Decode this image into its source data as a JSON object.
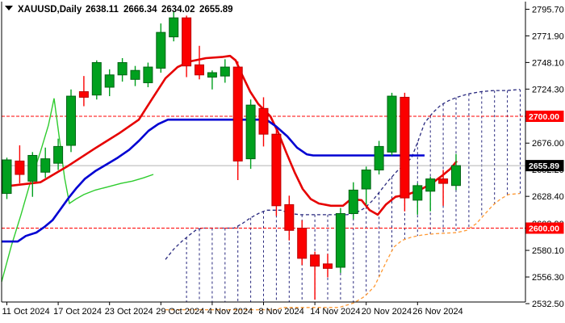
{
  "title": {
    "symbol_period": "XAUUSD,Daily",
    "open": "2638.11",
    "high": "2666.34",
    "low": "2634.02",
    "close": "2655.89"
  },
  "chart_data": {
    "type": "candlestick",
    "symbol": "XAUUSD",
    "timeframe": "Daily",
    "indicator": "Ichimoku Kinko Hyo",
    "grid": false,
    "colors": {
      "background": "#ffffff",
      "frame": "#000000",
      "bull_body": "#00a01e",
      "bull_border": "#006414",
      "bear_body": "#fb0000",
      "bear_border": "#bb0000",
      "tenkan_sen": "#e60000",
      "kijun_sen": "#0000d2",
      "chikou_span": "#2ecc2e",
      "senkou_span_a": "#28287e",
      "senkou_span_b": "#ff9933",
      "cloud_hatch": "#28287e",
      "level_line": "#ff0000",
      "current_line": "#b4b4b4",
      "badge_text": "#ffffff",
      "axis_text": "#000000"
    },
    "y_axis": {
      "ticks": [
        {
          "label": "2795.70",
          "value": 2795.7
        },
        {
          "label": "2771.90",
          "value": 2771.9
        },
        {
          "label": "2748.10",
          "value": 2748.1
        },
        {
          "label": "2724.30",
          "value": 2724.3
        },
        {
          "label": "2676.00",
          "value": 2676.0
        },
        {
          "label": "2652.20",
          "value": 2652.2
        },
        {
          "label": "2628.40",
          "value": 2628.4
        },
        {
          "label": "2603.90",
          "value": 2603.9
        },
        {
          "label": "2580.10",
          "value": 2580.1
        },
        {
          "label": "2556.30",
          "value": 2556.3
        },
        {
          "label": "2532.50",
          "value": 2532.5
        }
      ]
    },
    "levels": [
      {
        "label": "2700.00",
        "value": 2700.0,
        "style": "dashed",
        "color": "#ff0000"
      },
      {
        "label": "2600.00",
        "value": 2600.0,
        "style": "dashed",
        "color": "#ff0000"
      }
    ],
    "current_price": {
      "label": "2655.89",
      "value": 2655.89,
      "badge_bg": "#000000"
    },
    "x_axis": {
      "labels": [
        {
          "label": "11 Oct 2024",
          "bar": 0
        },
        {
          "label": "17 Oct 2024",
          "bar": 4
        },
        {
          "label": "23 Oct 2024",
          "bar": 8
        },
        {
          "label": "29 Oct 2024",
          "bar": 12
        },
        {
          "label": "4 Nov 2024",
          "bar": 16
        },
        {
          "label": "8 Nov 2024",
          "bar": 20
        },
        {
          "label": "14 Nov 2024",
          "bar": 24
        },
        {
          "label": "20 Nov 2024",
          "bar": 28
        },
        {
          "label": "26 Nov 2024",
          "bar": 32
        }
      ]
    },
    "candles": [
      {
        "date": "11 Oct 2024",
        "o": 2631.0,
        "h": 2663.0,
        "l": 2626.0,
        "c": 2661.0
      },
      {
        "date": "14 Oct 2024",
        "o": 2660.0,
        "h": 2674.0,
        "l": 2640.0,
        "c": 2648.0
      },
      {
        "date": "15 Oct 2024",
        "o": 2642.0,
        "h": 2668.0,
        "l": 2628.0,
        "c": 2665.0
      },
      {
        "date": "16 Oct 2024",
        "o": 2650.0,
        "h": 2672.0,
        "l": 2645.0,
        "c": 2662.0
      },
      {
        "date": "17 Oct 2024",
        "o": 2658.0,
        "h": 2680.0,
        "l": 2652.0,
        "c": 2673.0
      },
      {
        "date": "18 Oct 2024",
        "o": 2674.0,
        "h": 2724.0,
        "l": 2668.0,
        "c": 2718.0
      },
      {
        "date": "21 Oct 2024",
        "o": 2722.0,
        "h": 2736.0,
        "l": 2709.0,
        "c": 2717.0
      },
      {
        "date": "22 Oct 2024",
        "o": 2719.0,
        "h": 2750.0,
        "l": 2715.0,
        "c": 2748.0
      },
      {
        "date": "23 Oct 2024",
        "o": 2726.0,
        "h": 2742.0,
        "l": 2718.0,
        "c": 2737.0
      },
      {
        "date": "24 Oct 2024",
        "o": 2737.0,
        "h": 2752.0,
        "l": 2731.0,
        "c": 2748.0
      },
      {
        "date": "25 Oct 2024",
        "o": 2733.0,
        "h": 2745.0,
        "l": 2727.0,
        "c": 2741.0
      },
      {
        "date": "28 Oct 2024",
        "o": 2730.0,
        "h": 2748.0,
        "l": 2726.0,
        "c": 2744.0
      },
      {
        "date": "29 Oct 2024",
        "o": 2743.0,
        "h": 2783.0,
        "l": 2739.0,
        "c": 2775.0
      },
      {
        "date": "30 Oct 2024",
        "o": 2771.0,
        "h": 2794.0,
        "l": 2767.0,
        "c": 2788.0
      },
      {
        "date": "31 Oct 2024",
        "o": 2788.0,
        "h": 2790.0,
        "l": 2735.0,
        "c": 2745.0
      },
      {
        "date": "1 Nov 2024",
        "o": 2746.0,
        "h": 2763.0,
        "l": 2733.0,
        "c": 2737.0
      },
      {
        "date": "4 Nov 2024",
        "o": 2735.0,
        "h": 2741.0,
        "l": 2724.0,
        "c": 2739.0
      },
      {
        "date": "5 Nov 2024",
        "o": 2736.0,
        "h": 2751.0,
        "l": 2730.0,
        "c": 2744.0
      },
      {
        "date": "6 Nov 2024",
        "o": 2744.0,
        "h": 2749.0,
        "l": 2643.0,
        "c": 2660.0
      },
      {
        "date": "7 Nov 2024",
        "o": 2662.0,
        "h": 2715.0,
        "l": 2653.0,
        "c": 2710.0
      },
      {
        "date": "8 Nov 2024",
        "o": 2707.0,
        "h": 2717.0,
        "l": 2673.0,
        "c": 2684.0
      },
      {
        "date": "11 Nov 2024",
        "o": 2684.0,
        "h": 2688.0,
        "l": 2611.0,
        "c": 2620.0
      },
      {
        "date": "12 Nov 2024",
        "o": 2621.0,
        "h": 2629.0,
        "l": 2589.0,
        "c": 2598.0
      },
      {
        "date": "13 Nov 2024",
        "o": 2600.0,
        "h": 2607.0,
        "l": 2567.0,
        "c": 2573.0
      },
      {
        "date": "14 Nov 2024",
        "o": 2576.0,
        "h": 2579.0,
        "l": 2536.0,
        "c": 2566.0
      },
      {
        "date": "15 Nov 2024",
        "o": 2568.0,
        "h": 2577.0,
        "l": 2556.0,
        "c": 2564.0
      },
      {
        "date": "18 Nov 2024",
        "o": 2565.0,
        "h": 2618.0,
        "l": 2560.0,
        "c": 2613.0
      },
      {
        "date": "19 Nov 2024",
        "o": 2613.0,
        "h": 2641.0,
        "l": 2608.0,
        "c": 2634.0
      },
      {
        "date": "20 Nov 2024",
        "o": 2635.0,
        "h": 2655.0,
        "l": 2621.0,
        "c": 2652.0
      },
      {
        "date": "21 Nov 2024",
        "o": 2652.0,
        "h": 2678.0,
        "l": 2648.0,
        "c": 2673.0
      },
      {
        "date": "22 Nov 2024",
        "o": 2668.0,
        "h": 2721.0,
        "l": 2665.0,
        "c": 2718.0
      },
      {
        "date": "25 Nov 2024",
        "o": 2717.0,
        "h": 2721.0,
        "l": 2615.0,
        "c": 2627.0
      },
      {
        "date": "26 Nov 2024",
        "o": 2625.0,
        "h": 2640.0,
        "l": 2612.0,
        "c": 2638.0
      },
      {
        "date": "27 Nov 2024",
        "o": 2633.0,
        "h": 2646.0,
        "l": 2615.0,
        "c": 2644.0
      },
      {
        "date": "28 Nov 2024",
        "o": 2644.0,
        "h": 2652.0,
        "l": 2620.0,
        "c": 2640.0
      },
      {
        "date": "29 Nov 2024",
        "o": 2638.11,
        "h": 2666.34,
        "l": 2634.02,
        "c": 2655.89
      }
    ],
    "ichimoku": {
      "tenkan_sen": [
        [
          2,
          2637
        ],
        [
          50,
          2641
        ],
        [
          83,
          2655
        ],
        [
          117,
          2671
        ],
        [
          148,
          2685
        ],
        [
          172,
          2697
        ],
        [
          188,
          2715
        ],
        [
          205,
          2734
        ],
        [
          220,
          2744
        ],
        [
          235,
          2749
        ],
        [
          255,
          2752
        ],
        [
          275,
          2753
        ],
        [
          285,
          2754
        ],
        [
          292,
          2750
        ],
        [
          300,
          2737
        ],
        [
          310,
          2722
        ],
        [
          320,
          2711
        ],
        [
          335,
          2700
        ],
        [
          345,
          2685
        ],
        [
          355,
          2667
        ],
        [
          365,
          2650
        ],
        [
          375,
          2635
        ],
        [
          385,
          2626
        ],
        [
          395,
          2622
        ],
        [
          410,
          2620
        ],
        [
          425,
          2620
        ],
        [
          435,
          2626
        ],
        [
          448,
          2625
        ],
        [
          458,
          2616
        ],
        [
          468,
          2612
        ],
        [
          478,
          2621
        ],
        [
          490,
          2628
        ],
        [
          505,
          2630
        ],
        [
          520,
          2634
        ],
        [
          535,
          2640
        ],
        [
          548,
          2647
        ],
        [
          558,
          2653
        ],
        [
          566,
          2660
        ]
      ],
      "kijun_sen": [
        [
          2,
          2588
        ],
        [
          22,
          2588
        ],
        [
          32,
          2593
        ],
        [
          45,
          2596
        ],
        [
          55,
          2601
        ],
        [
          65,
          2607
        ],
        [
          75,
          2617
        ],
        [
          85,
          2627
        ],
        [
          95,
          2636
        ],
        [
          105,
          2644
        ],
        [
          118,
          2651
        ],
        [
          132,
          2657
        ],
        [
          146,
          2663
        ],
        [
          160,
          2670
        ],
        [
          172,
          2678
        ],
        [
          184,
          2687
        ],
        [
          196,
          2693
        ],
        [
          208,
          2697
        ],
        [
          330,
          2697
        ],
        [
          342,
          2691
        ],
        [
          356,
          2682
        ],
        [
          368,
          2672
        ],
        [
          380,
          2666
        ],
        [
          388,
          2665
        ],
        [
          526,
          2665
        ]
      ],
      "chikou_span": [
        [
          2,
          2552
        ],
        [
          14,
          2584
        ],
        [
          26,
          2612
        ],
        [
          38,
          2642
        ],
        [
          50,
          2668
        ],
        [
          60,
          2692
        ],
        [
          67,
          2716
        ],
        [
          74,
          2678
        ],
        [
          80,
          2645
        ],
        [
          86,
          2622
        ],
        [
          94,
          2626
        ],
        [
          104,
          2630
        ],
        [
          118,
          2634
        ],
        [
          134,
          2637
        ],
        [
          150,
          2640
        ],
        [
          164,
          2642
        ],
        [
          178,
          2645
        ],
        [
          190,
          2648
        ]
      ],
      "senkou_span_a": [
        [
          205,
          2572
        ],
        [
          215,
          2581
        ],
        [
          225,
          2588
        ],
        [
          235,
          2594
        ],
        [
          244,
          2599
        ],
        [
          252,
          2600
        ],
        [
          290,
          2600
        ],
        [
          300,
          2604
        ],
        [
          310,
          2609
        ],
        [
          320,
          2613
        ],
        [
          330,
          2616
        ],
        [
          348,
          2616
        ],
        [
          360,
          2613
        ],
        [
          372,
          2612
        ],
        [
          430,
          2612
        ],
        [
          442,
          2614
        ],
        [
          452,
          2618
        ],
        [
          462,
          2625
        ],
        [
          472,
          2634
        ],
        [
          482,
          2643
        ],
        [
          492,
          2651
        ],
        [
          502,
          2657
        ],
        [
          510,
          2663
        ],
        [
          518,
          2678
        ],
        [
          526,
          2694
        ],
        [
          536,
          2703
        ],
        [
          546,
          2710
        ],
        [
          556,
          2714
        ],
        [
          566,
          2717
        ],
        [
          580,
          2720
        ],
        [
          596,
          2722
        ],
        [
          612,
          2723
        ],
        [
          628,
          2723
        ],
        [
          644,
          2724
        ]
      ],
      "senkou_span_b": [
        [
          205,
          2527
        ],
        [
          340,
          2527
        ],
        [
          352,
          2529
        ],
        [
          420,
          2529
        ],
        [
          438,
          2533
        ],
        [
          452,
          2539
        ],
        [
          464,
          2548
        ],
        [
          472,
          2560
        ],
        [
          480,
          2572
        ],
        [
          488,
          2583
        ],
        [
          498,
          2589
        ],
        [
          510,
          2592
        ],
        [
          524,
          2594
        ],
        [
          540,
          2595
        ],
        [
          566,
          2596
        ],
        [
          578,
          2598
        ],
        [
          590,
          2604
        ],
        [
          600,
          2612
        ],
        [
          610,
          2620
        ],
        [
          620,
          2626
        ],
        [
          630,
          2630
        ],
        [
          644,
          2631
        ]
      ]
    }
  }
}
